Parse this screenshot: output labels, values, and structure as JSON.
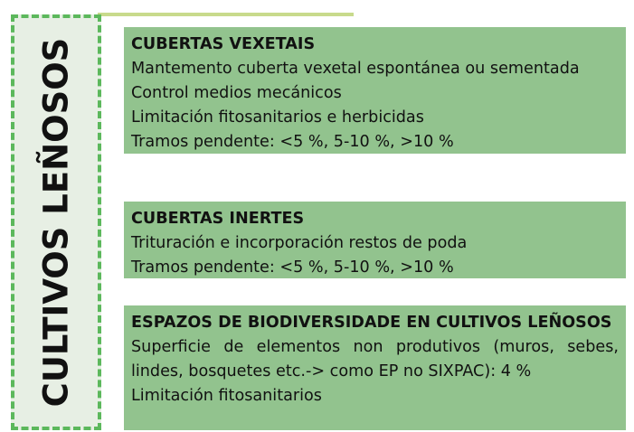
{
  "side_label": "CULTIVOS LEÑOSOS",
  "sections": [
    {
      "heading": "CUBERTAS VEXETAIS",
      "lines": [
        "Mantemento cuberta vexetal espontánea ou sementada",
        "Control medios mecánicos",
        "Limitación fitosanitarios e herbicidas",
        "Tramos pendente: <5 %, 5-10 %, >10 %"
      ]
    },
    {
      "heading": "CUBERTAS INERTES",
      "lines": [
        "Trituración e incorporación restos de poda",
        "Tramos pendente: <5 %, 5-10 %, >10 %"
      ]
    },
    {
      "heading": "ESPAZOS DE BIODIVERSIDADE EN CULTIVOS LEÑOSOS",
      "lines": [
        "Superficie de elementos non produtivos (muros, sebes, lindes, bosquetes etc.-> como EP no SIXPAC): 4 %",
        "Limitación fitosanitarios"
      ]
    }
  ]
}
